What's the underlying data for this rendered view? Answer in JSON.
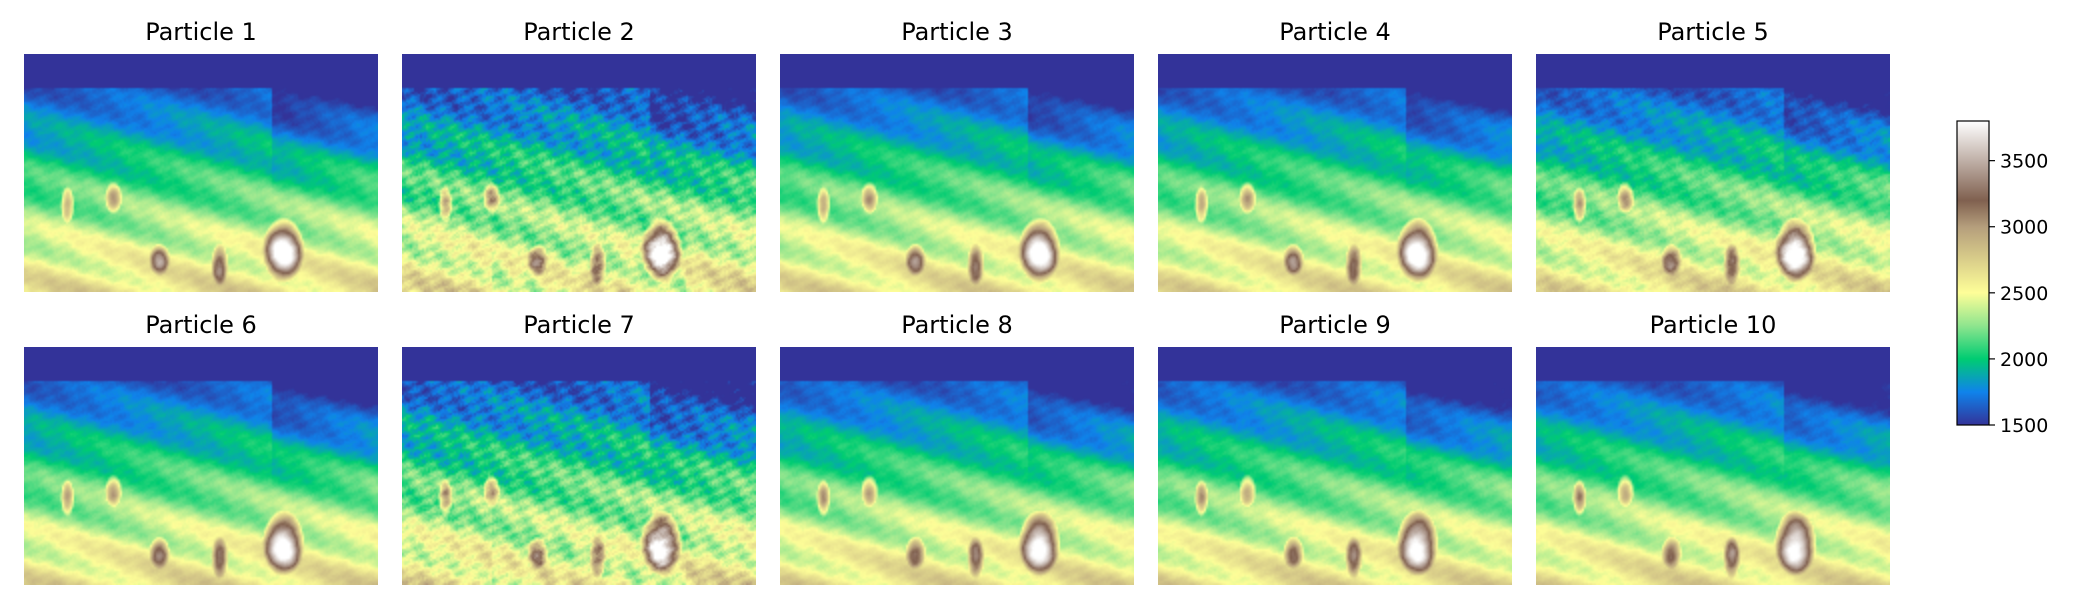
{
  "chart_data": {
    "type": "heatmap",
    "layout": {
      "rows": 2,
      "cols": 5
    },
    "panels": [
      {
        "title": "Particle 1",
        "variant": "smooth"
      },
      {
        "title": "Particle 2",
        "variant": "noisy"
      },
      {
        "title": "Particle 3",
        "variant": "smooth"
      },
      {
        "title": "Particle 4",
        "variant": "smooth"
      },
      {
        "title": "Particle 5",
        "variant": "medium"
      },
      {
        "title": "Particle 6",
        "variant": "smooth"
      },
      {
        "title": "Particle 7",
        "variant": "noisy"
      },
      {
        "title": "Particle 8",
        "variant": "smooth"
      },
      {
        "title": "Particle 9",
        "variant": "smooth"
      },
      {
        "title": "Particle 10",
        "variant": "smooth"
      }
    ],
    "colorbar": {
      "ticks": [
        1500,
        2000,
        2500,
        3000,
        3500
      ],
      "range": [
        1500,
        3800
      ],
      "colormap": "terrain",
      "stops": [
        {
          "value": 1500,
          "color": "#333399"
        },
        {
          "value": 1750,
          "color": "#0f83eb"
        },
        {
          "value": 2000,
          "color": "#00cc72"
        },
        {
          "value": 2250,
          "color": "#8ee58e"
        },
        {
          "value": 2500,
          "color": "#fefe98"
        },
        {
          "value": 3000,
          "color": "#b59e7c"
        },
        {
          "value": 3200,
          "color": "#80604f"
        },
        {
          "value": 3800,
          "color": "#ffffff"
        }
      ]
    },
    "grid": false
  }
}
